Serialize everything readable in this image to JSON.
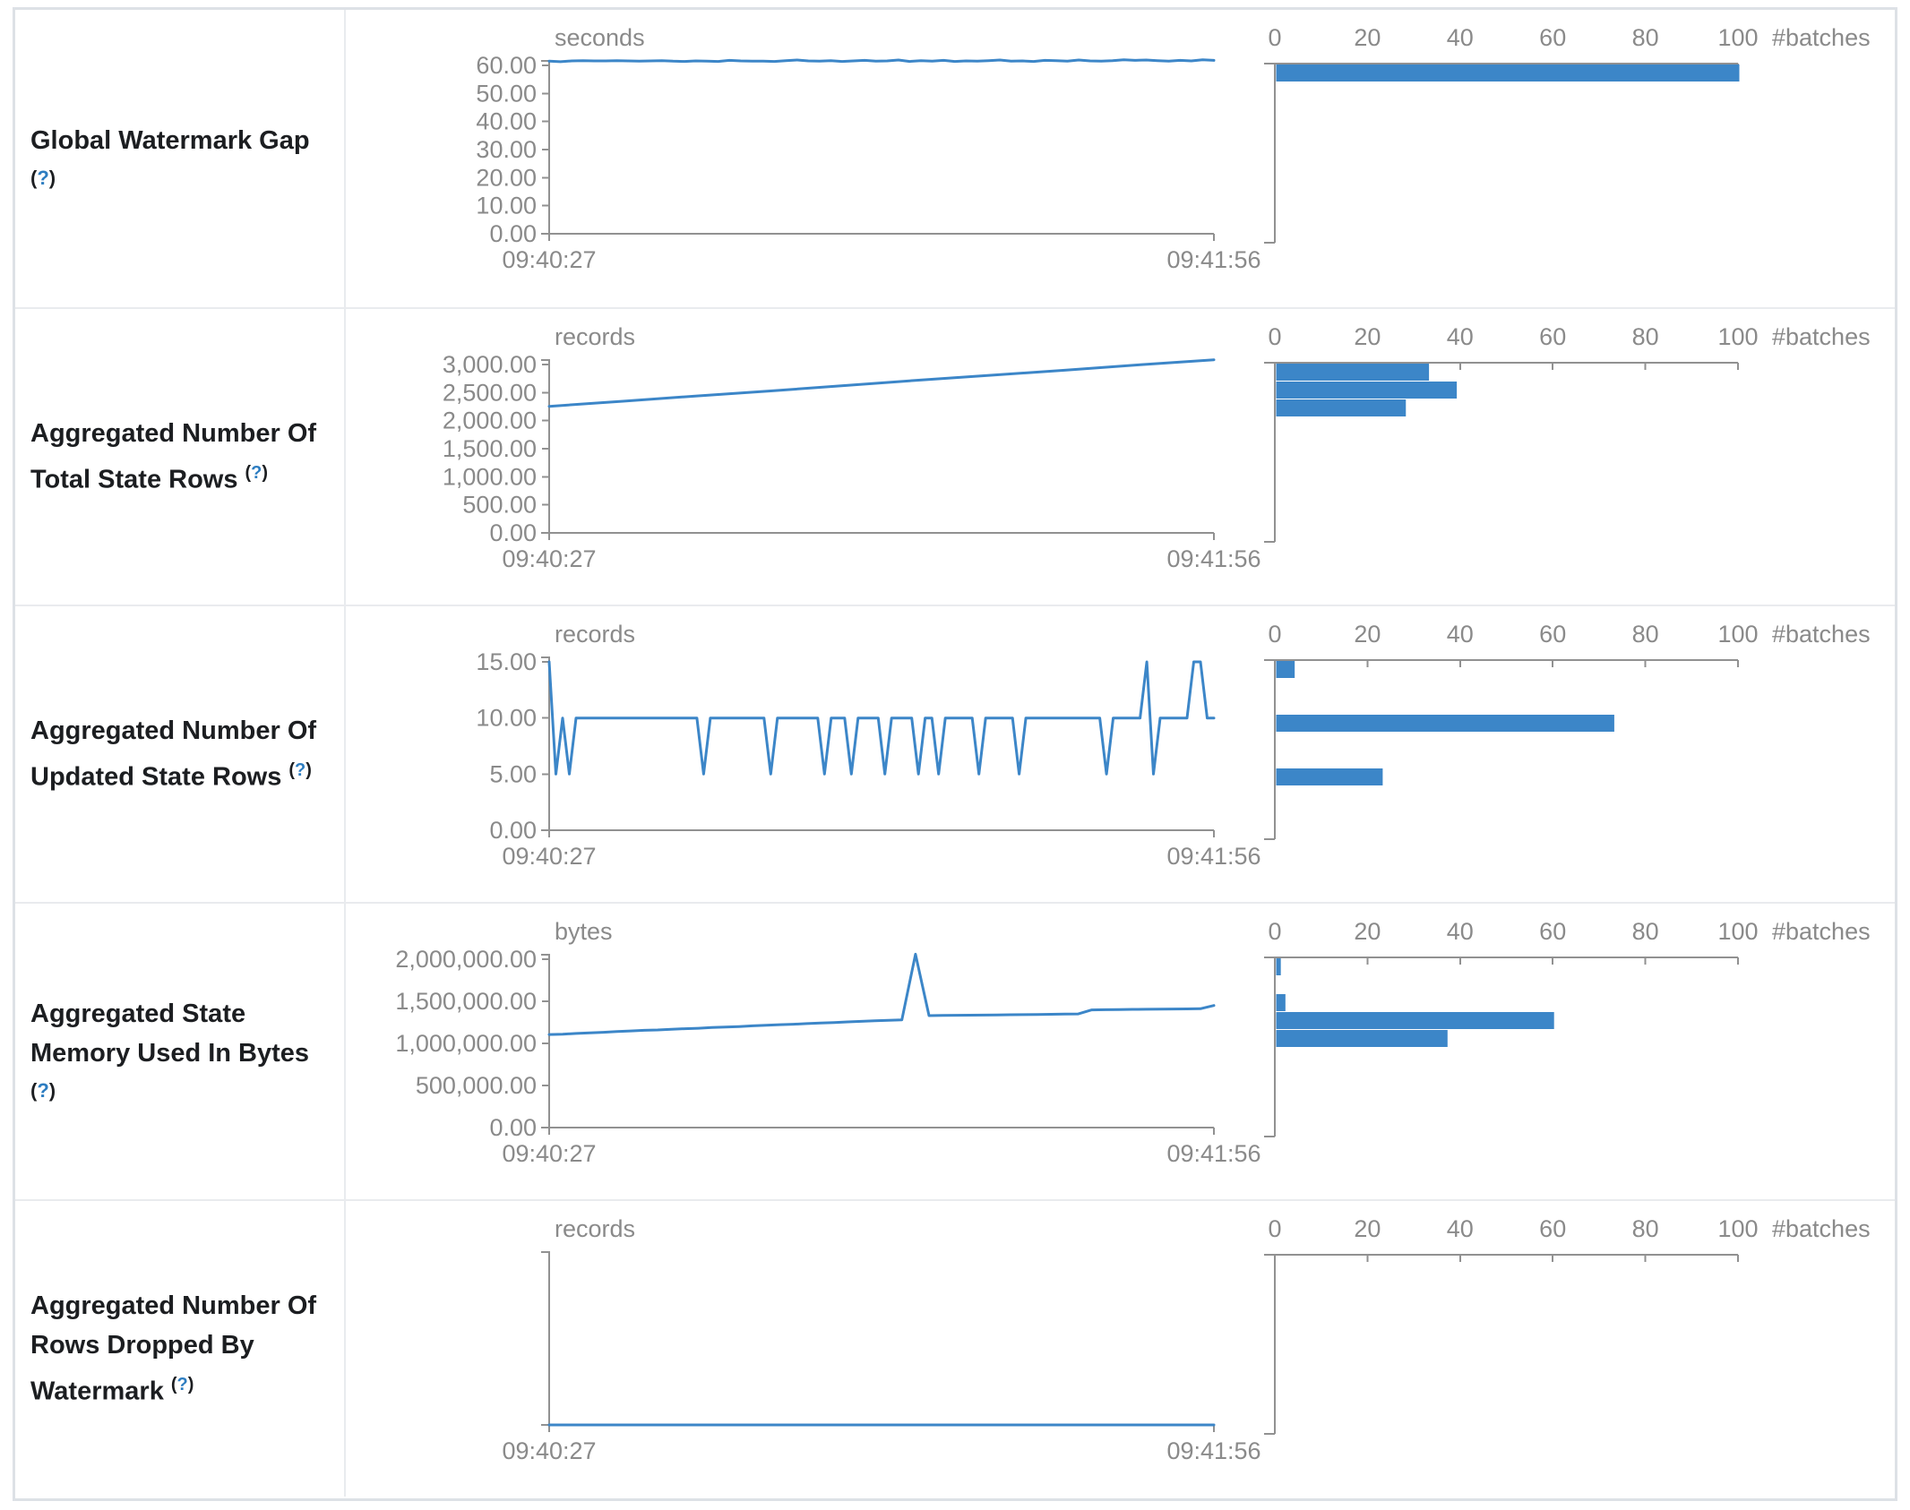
{
  "colors": {
    "series": "#3c86c8",
    "axis_line": "#919191",
    "axis_text": "#8a8a8a",
    "label_text": "#1c1e21",
    "help_link": "#2d7dc1",
    "outer_border": "#dde1e6",
    "inner_border": "#e9ebee"
  },
  "chart_data": [
    {
      "name": "global-watermark-gap",
      "label_lines": [
        "Global Watermark Gap"
      ],
      "help_text": "?",
      "help_on_own_line": true,
      "timeline": {
        "type": "line",
        "unit": "seconds",
        "x_start": "09:40:27",
        "x_end": "09:41:56",
        "y_max": 60,
        "y_ticks": [
          {
            "value": 0,
            "label": "0.00"
          },
          {
            "value": 10,
            "label": "10.00"
          },
          {
            "value": 20,
            "label": "20.00"
          },
          {
            "value": 30,
            "label": "30.00"
          },
          {
            "value": 40,
            "label": "40.00"
          },
          {
            "value": 50,
            "label": "50.00"
          },
          {
            "value": 60,
            "label": "60.00"
          }
        ],
        "values": [
          61.5,
          61.3,
          61.6,
          61.7,
          61.6,
          61.6,
          61.7,
          61.6,
          61.5,
          61.6,
          61.7,
          61.5,
          61.4,
          61.6,
          61.5,
          61.4,
          61.8,
          61.6,
          61.5,
          61.5,
          61.4,
          61.7,
          61.9,
          61.6,
          61.5,
          61.7,
          61.4,
          61.6,
          61.8,
          61.5,
          61.6,
          61.9,
          61.4,
          61.7,
          61.5,
          61.8,
          61.4,
          61.6,
          61.5,
          61.7,
          61.9,
          61.5,
          61.6,
          61.4,
          61.8,
          61.7,
          61.5,
          61.9,
          61.6,
          61.5,
          61.7,
          62.0,
          61.8,
          61.9,
          61.7,
          61.5,
          61.8,
          61.6,
          62.0,
          61.8
        ]
      },
      "histogram": {
        "type": "bar",
        "orientation": "horizontal",
        "x_label": "#batches",
        "x_ticks": [
          0,
          20,
          40,
          60,
          80,
          100
        ],
        "x_max": 100,
        "bins": [
          {
            "slot": 0,
            "count": 100
          }
        ]
      }
    },
    {
      "name": "aggregated-number-of-total-state-rows",
      "label_lines": [
        "Aggregated Number Of",
        "Total State Rows"
      ],
      "help_text": "?",
      "help_on_own_line": false,
      "timeline": {
        "type": "line",
        "unit": "records",
        "x_start": "09:40:27",
        "x_end": "09:41:56",
        "y_max": 3000,
        "y_ticks": [
          {
            "value": 0,
            "label": "0.00"
          },
          {
            "value": 500,
            "label": "500.00"
          },
          {
            "value": 1000,
            "label": "1,000.00"
          },
          {
            "value": 1500,
            "label": "1,500.00"
          },
          {
            "value": 2000,
            "label": "2,000.00"
          },
          {
            "value": 2500,
            "label": "2,500.00"
          },
          {
            "value": 3000,
            "label": "3,000.00"
          }
        ],
        "values": [
          2255,
          2345,
          2440,
          2530,
          2625,
          2720,
          2810,
          2900,
          2995,
          3085
        ]
      },
      "histogram": {
        "type": "bar",
        "orientation": "horizontal",
        "x_label": "#batches",
        "x_ticks": [
          0,
          20,
          40,
          60,
          80,
          100
        ],
        "x_max": 100,
        "bins": [
          {
            "slot": 0,
            "count": 33
          },
          {
            "slot": 1,
            "count": 39
          },
          {
            "slot": 2,
            "count": 28
          }
        ]
      }
    },
    {
      "name": "aggregated-number-of-updated-state-rows",
      "label_lines": [
        "Aggregated Number Of",
        "Updated State Rows"
      ],
      "help_text": "?",
      "help_on_own_line": false,
      "timeline": {
        "type": "line",
        "unit": "records",
        "x_start": "09:40:27",
        "x_end": "09:41:56",
        "y_max": 15,
        "y_ticks": [
          {
            "value": 0,
            "label": "0.00"
          },
          {
            "value": 5,
            "label": "5.00"
          },
          {
            "value": 10,
            "label": "10.00"
          },
          {
            "value": 15,
            "label": "15.00"
          }
        ],
        "values": [
          15,
          5,
          10,
          5,
          10,
          10,
          10,
          10,
          10,
          10,
          10,
          10,
          10,
          10,
          10,
          10,
          10,
          10,
          10,
          10,
          10,
          10,
          10,
          5,
          10,
          10,
          10,
          10,
          10,
          10,
          10,
          10,
          10,
          5,
          10,
          10,
          10,
          10,
          10,
          10,
          10,
          5,
          10,
          10,
          10,
          5,
          10,
          10,
          10,
          10,
          5,
          10,
          10,
          10,
          10,
          5,
          10,
          10,
          5,
          10,
          10,
          10,
          10,
          10,
          5,
          10,
          10,
          10,
          10,
          10,
          5,
          10,
          10,
          10,
          10,
          10,
          10,
          10,
          10,
          10,
          10,
          10,
          10,
          5,
          10,
          10,
          10,
          10,
          10,
          15,
          5,
          10,
          10,
          10,
          10,
          10,
          15,
          15,
          10,
          10
        ]
      },
      "histogram": {
        "type": "bar",
        "orientation": "horizontal",
        "x_label": "#batches",
        "x_ticks": [
          0,
          20,
          40,
          60,
          80,
          100
        ],
        "x_max": 100,
        "bins": [
          {
            "slot": 0,
            "count": 4
          },
          {
            "slot": 3,
            "count": 73
          },
          {
            "slot": 6,
            "count": 23
          }
        ]
      }
    },
    {
      "name": "aggregated-state-memory-used-in-bytes",
      "label_lines": [
        "Aggregated State",
        "Memory Used In Bytes"
      ],
      "help_text": "?",
      "help_on_own_line": true,
      "timeline": {
        "type": "line",
        "unit": "bytes",
        "x_start": "09:40:27",
        "x_end": "09:41:56",
        "y_max": 2000000,
        "y_ticks": [
          {
            "value": 0,
            "label": "0.00"
          },
          {
            "value": 500000,
            "label": "500,000.00"
          },
          {
            "value": 1000000,
            "label": "1,000,000.00"
          },
          {
            "value": 1500000,
            "label": "1,500,000.00"
          },
          {
            "value": 2000000,
            "label": "2,000,000.00"
          }
        ],
        "values": [
          1105000,
          1110000,
          1118000,
          1125000,
          1132000,
          1140000,
          1148000,
          1155000,
          1160000,
          1168000,
          1175000,
          1180000,
          1188000,
          1195000,
          1200000,
          1208000,
          1215000,
          1222000,
          1228000,
          1235000,
          1242000,
          1248000,
          1255000,
          1262000,
          1268000,
          1275000,
          1280000,
          2060000,
          1330000,
          1332000,
          1334000,
          1335000,
          1336000,
          1338000,
          1340000,
          1342000,
          1344000,
          1346000,
          1348000,
          1350000,
          1398000,
          1400000,
          1402000,
          1404000,
          1405000,
          1406000,
          1408000,
          1410000,
          1412000,
          1450000
        ]
      },
      "histogram": {
        "type": "bar",
        "orientation": "horizontal",
        "x_label": "#batches",
        "x_ticks": [
          0,
          20,
          40,
          60,
          80,
          100
        ],
        "x_max": 100,
        "bins": [
          {
            "slot": 0,
            "count": 1
          },
          {
            "slot": 2,
            "count": 2
          },
          {
            "slot": 3,
            "count": 60
          },
          {
            "slot": 4,
            "count": 37
          }
        ]
      }
    },
    {
      "name": "aggregated-number-of-rows-dropped-by-watermark",
      "label_lines": [
        "Aggregated Number Of",
        "Rows Dropped By",
        "Watermark"
      ],
      "help_text": "?",
      "help_on_own_line": false,
      "timeline": {
        "type": "line",
        "unit": "records",
        "x_start": "09:40:27",
        "x_end": "09:41:56",
        "y_max": 1,
        "y_ticks": [],
        "values": [
          0,
          0
        ]
      },
      "histogram": {
        "type": "bar",
        "orientation": "horizontal",
        "x_label": "#batches",
        "x_ticks": [
          0,
          20,
          40,
          60,
          80,
          100
        ],
        "x_max": 100,
        "bins": []
      }
    }
  ]
}
